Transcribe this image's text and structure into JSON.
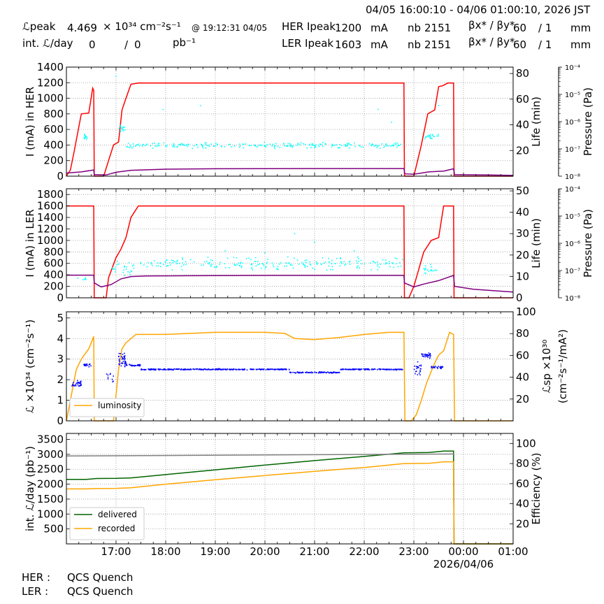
{
  "header": {
    "time_range": "04/05 16:00:10 - 04/06 01:00:10, 2026 JST",
    "lpeak_label": "ℒpeak",
    "lpeak_value": "4.469",
    "lpeak_unit": "× 10³⁴ cm⁻²s⁻¹",
    "lpeak_at": "@ 19:12:31 04/05",
    "intl_label": "int. ℒ/day",
    "intl_value": "0",
    "intl_sep": "/",
    "intl_value2": "0",
    "intl_unit": "pb⁻¹",
    "her_label": "HER Ipeak",
    "her_value": "1200",
    "her_unit": "mA",
    "ler_label": "LER Ipeak",
    "ler_value": "1603",
    "ler_unit": "mA",
    "nb_label": "nb",
    "her_nb": "2151",
    "ler_nb": "2151",
    "beta_label": "βx* / βy*",
    "her_beta_x": "60",
    "her_beta_y": "/ 1",
    "ler_beta_x": "60",
    "ler_beta_y": "/ 1",
    "beta_unit": "mm"
  },
  "footer": {
    "her_label": "HER :",
    "her_status": "QCS Quench",
    "ler_label": "LER :",
    "ler_status": "QCS Quench"
  },
  "colors": {
    "current": "#ff0000",
    "life": "#00ffff",
    "pressure": "#800080",
    "lsp": "#0000ff",
    "luminosity": "#ffa500",
    "delivered": "#006400",
    "recorded": "#ffa500",
    "efficiency": "#808080"
  },
  "chart_data": [
    {
      "type": "line",
      "panel": "HER",
      "x_unit": "hours since 16:00 on 04/05",
      "xlim": [
        0,
        9
      ],
      "x_ticks": [
        "17:00",
        "18:00",
        "19:00",
        "20:00",
        "21:00",
        "22:00",
        "23:00",
        "00:00",
        "01:00"
      ],
      "x_date_label": "",
      "ylabel": "I (mA) in HER",
      "ylim": [
        0,
        1400
      ],
      "yticks": [
        "0",
        "200",
        "400",
        "600",
        "800",
        "1000",
        "1200",
        "1400"
      ],
      "y2label": "Life (min)",
      "y2lim": [
        0,
        85
      ],
      "y2ticks": [
        "20",
        "40",
        "60",
        "80"
      ],
      "y3label": "Pressure (Pa)",
      "y3ticks": [
        "10⁻⁸",
        "10⁻⁷",
        "10⁻⁶",
        "10⁻⁵",
        "10⁻⁴"
      ],
      "series": [
        {
          "role": "current",
          "axis": "y",
          "x": [
            0,
            0.08,
            0.15,
            0.3,
            0.45,
            0.53,
            0.55,
            0.56,
            0.75,
            0.85,
            0.95,
            1.05,
            1.12,
            1.2,
            1.3,
            1.45,
            6.8,
            6.81,
            6.82,
            7.0,
            7.15,
            7.28,
            7.42,
            7.5,
            7.58,
            7.68,
            7.8,
            7.81,
            9
          ],
          "values": [
            0,
            80,
            300,
            800,
            810,
            1130,
            1100,
            0,
            0,
            200,
            400,
            440,
            850,
            1000,
            1180,
            1195,
            1195,
            20,
            0,
            0,
            400,
            800,
            850,
            1150,
            1160,
            1195,
            1195,
            0,
            0
          ]
        },
        {
          "role": "pressure",
          "axis": "y",
          "x": [
            0,
            0.3,
            0.55,
            0.56,
            0.8,
            1.0,
            1.3,
            2.0,
            3.0,
            4.0,
            5.0,
            6.0,
            6.8,
            6.82,
            7.0,
            7.3,
            7.6,
            7.8,
            7.82,
            8.5,
            9
          ],
          "values": [
            40,
            55,
            80,
            20,
            15,
            50,
            75,
            90,
            95,
            97,
            98,
            98,
            98,
            30,
            25,
            55,
            65,
            95,
            20,
            15,
            10
          ]
        },
        {
          "role": "life",
          "axis": "y2",
          "mode": "scatter",
          "clusters": [
            [
              0.35,
              0.42,
              30,
              4,
              12
            ],
            [
              1.05,
              1.2,
              37,
              5,
              16
            ],
            [
              1.2,
              6.8,
              24,
              3,
              230
            ],
            [
              7.2,
              7.5,
              31,
              3,
              22
            ]
          ],
          "outliers": [
            [
              1.0,
              78
            ],
            [
              1.95,
              52
            ],
            [
              2.7,
              55
            ],
            [
              6.28,
              52
            ],
            [
              6.55,
              42
            ],
            [
              7.5,
              55
            ]
          ]
        }
      ]
    },
    {
      "type": "line",
      "panel": "LER",
      "x_unit": "hours since 16:00 on 04/05",
      "xlim": [
        0,
        9
      ],
      "x_ticks": [
        "17:00",
        "18:00",
        "19:00",
        "20:00",
        "21:00",
        "22:00",
        "23:00",
        "00:00",
        "01:00"
      ],
      "ylabel": "I (mA) in LER",
      "ylim": [
        0,
        1900
      ],
      "yticks": [
        "0",
        "200",
        "400",
        "600",
        "800",
        "1000",
        "1200",
        "1400",
        "1600",
        "1800"
      ],
      "y2label": "Life (min)",
      "y2lim": [
        0,
        51
      ],
      "y2ticks": [
        "0",
        "10",
        "20",
        "30",
        "40",
        "50"
      ],
      "y3label": "Pressure (Pa)",
      "y3ticks": [
        "10⁻⁸",
        "10⁻⁷",
        "10⁻⁶",
        "10⁻⁵",
        "10⁻⁴"
      ],
      "series": [
        {
          "role": "current",
          "axis": "y",
          "x": [
            0,
            0.55,
            0.56,
            0.8,
            0.85,
            1.0,
            1.1,
            1.2,
            1.3,
            1.45,
            6.8,
            6.81,
            6.9,
            7.0,
            7.2,
            7.35,
            7.5,
            7.6,
            7.7,
            7.8,
            7.81,
            9
          ],
          "values": [
            1600,
            1600,
            0,
            0,
            350,
            700,
            850,
            1050,
            1400,
            1600,
            1600,
            0,
            0,
            200,
            800,
            1000,
            1050,
            1600,
            1600,
            1600,
            0,
            0
          ]
        },
        {
          "role": "pressure",
          "axis": "y",
          "x": [
            0,
            0.55,
            0.56,
            0.7,
            0.9,
            1.1,
            1.3,
            1.6,
            2.5,
            4.0,
            6.8,
            6.81,
            7.0,
            7.2,
            7.5,
            7.7,
            7.8,
            7.82,
            8.2,
            9
          ],
          "values": [
            395,
            395,
            260,
            190,
            230,
            330,
            370,
            380,
            385,
            390,
            390,
            260,
            190,
            240,
            300,
            360,
            390,
            200,
            150,
            100
          ]
        },
        {
          "role": "life",
          "axis": "y2",
          "mode": "scatter",
          "clusters": [
            [
              0.2,
              0.4,
              9,
              1,
              6
            ],
            [
              0.9,
              1.4,
              14,
              4,
              25
            ],
            [
              1.4,
              6.8,
              16,
              4,
              220
            ],
            [
              7.2,
              7.5,
              13,
              3,
              18
            ]
          ],
          "outliers": [
            [
              3.2,
              22
            ],
            [
              4.6,
              30
            ],
            [
              5.0,
              26
            ],
            [
              5.8,
              22
            ],
            [
              4.0,
              21
            ]
          ]
        }
      ]
    },
    {
      "type": "line",
      "panel": "Luminosity",
      "x_unit": "hours since 16:00 on 04/05",
      "xlim": [
        0,
        9
      ],
      "x_ticks": [
        "17:00",
        "18:00",
        "19:00",
        "20:00",
        "21:00",
        "22:00",
        "23:00",
        "00:00",
        "01:00"
      ],
      "ylabel": "ℒ ×10³⁴ (cm⁻²s⁻¹)",
      "ylim": [
        0,
        5.3
      ],
      "yticks": [
        "0",
        "1",
        "2",
        "3",
        "4",
        "5"
      ],
      "y2label_1": "ℒsp ×10³⁰",
      "y2label_2": "(cm⁻²s⁻¹/mA²)",
      "y2lim": [
        0,
        100
      ],
      "y2ticks": [
        "20",
        "40",
        "60",
        "80",
        "100"
      ],
      "legend": "lower-left",
      "legend_label": "luminosity",
      "series": [
        {
          "role": "luminosity",
          "axis": "y",
          "name": "luminosity",
          "x": [
            0,
            0.12,
            0.2,
            0.3,
            0.45,
            0.55,
            0.56,
            0.95,
            1.05,
            1.12,
            1.2,
            1.3,
            1.4,
            2.0,
            2.5,
            3.0,
            3.5,
            4.0,
            4.4,
            4.6,
            5.0,
            5.5,
            6.0,
            6.5,
            6.8,
            6.82,
            6.95,
            7.05,
            7.15,
            7.25,
            7.4,
            7.5,
            7.6,
            7.72,
            7.8,
            7.82,
            9
          ],
          "values": [
            0,
            1.5,
            2.5,
            3.0,
            3.5,
            4.1,
            0,
            0,
            2.5,
            3.5,
            3.8,
            4.0,
            4.2,
            4.2,
            4.25,
            4.3,
            4.3,
            4.3,
            4.25,
            4.0,
            3.95,
            4.05,
            4.2,
            4.3,
            4.3,
            0,
            0,
            0.3,
            1.0,
            1.8,
            2.7,
            3.2,
            3.4,
            4.3,
            4.2,
            0,
            0
          ]
        },
        {
          "role": "lsp",
          "axis": "y",
          "mode": "scatter",
          "clusters": [
            [
              0.1,
              0.3,
              1.8,
              0.25,
              30
            ],
            [
              0.35,
              0.5,
              2.7,
              0.12,
              20
            ],
            [
              0.8,
              0.95,
              2.1,
              0.4,
              10
            ],
            [
              1.05,
              1.2,
              2.9,
              0.5,
              40
            ],
            [
              1.2,
              1.5,
              2.7,
              0.1,
              30
            ],
            [
              1.5,
              4.5,
              2.5,
              0.04,
              300
            ],
            [
              4.5,
              5.5,
              2.35,
              0.04,
              100
            ],
            [
              5.5,
              6.8,
              2.5,
              0.04,
              130
            ],
            [
              7.0,
              7.15,
              2.5,
              0.5,
              25
            ],
            [
              7.15,
              7.35,
              3.2,
              0.2,
              30
            ],
            [
              7.35,
              7.6,
              2.6,
              0.1,
              25
            ]
          ]
        }
      ]
    },
    {
      "type": "line",
      "panel": "Integrated",
      "x_unit": "hours since 16:00 on 04/05",
      "xlim": [
        0,
        9
      ],
      "x_ticks": [
        "17:00",
        "18:00",
        "19:00",
        "20:00",
        "21:00",
        "22:00",
        "23:00",
        "00:00",
        "01:00"
      ],
      "x_date_label": "2026/04/06",
      "ylabel": "int. ℒ/day (pb⁻¹)",
      "ylim": [
        0,
        3700
      ],
      "yticks": [
        "500",
        "1000",
        "1500",
        "2000",
        "2500",
        "3000",
        "3500"
      ],
      "y2label": "Efficiency (%)",
      "y2lim": [
        0,
        110
      ],
      "y2ticks": [
        "20",
        "40",
        "60",
        "80",
        "100"
      ],
      "legend": "lower-left",
      "series": [
        {
          "role": "delivered",
          "axis": "y",
          "name": "delivered",
          "x": [
            0,
            0.4,
            0.6,
            1.0,
            1.3,
            2.0,
            3.0,
            4.0,
            5.0,
            6.0,
            6.8,
            7.3,
            7.5,
            7.6,
            7.8,
            7.81,
            9
          ],
          "values": [
            2160,
            2160,
            2190,
            2195,
            2210,
            2320,
            2480,
            2640,
            2790,
            2930,
            3050,
            3060,
            3090,
            3110,
            3110,
            0,
            0
          ]
        },
        {
          "role": "recorded",
          "axis": "y",
          "name": "recorded",
          "x": [
            0,
            0.4,
            0.6,
            1.0,
            1.3,
            2.0,
            3.0,
            4.0,
            5.0,
            6.0,
            6.8,
            7.3,
            7.5,
            7.6,
            7.8,
            7.81,
            9
          ],
          "values": [
            1840,
            1840,
            1855,
            1860,
            1880,
            2000,
            2150,
            2290,
            2430,
            2560,
            2690,
            2700,
            2730,
            2750,
            2750,
            0,
            0
          ]
        },
        {
          "role": "efficiency",
          "axis": "y2",
          "x": [
            0,
            7.81
          ],
          "values": [
            87.5,
            89.5
          ]
        }
      ]
    }
  ]
}
